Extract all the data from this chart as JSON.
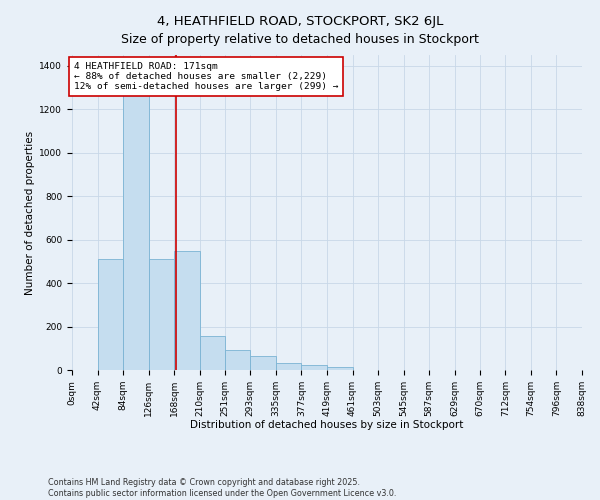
{
  "title": "4, HEATHFIELD ROAD, STOCKPORT, SK2 6JL",
  "subtitle": "Size of property relative to detached houses in Stockport",
  "xlabel": "Distribution of detached houses by size in Stockport",
  "ylabel": "Number of detached properties",
  "bin_labels": [
    "0sqm",
    "42sqm",
    "84sqm",
    "126sqm",
    "168sqm",
    "210sqm",
    "251sqm",
    "293sqm",
    "335sqm",
    "377sqm",
    "419sqm",
    "461sqm",
    "503sqm",
    "545sqm",
    "587sqm",
    "629sqm",
    "670sqm",
    "712sqm",
    "754sqm",
    "796sqm",
    "838sqm"
  ],
  "bin_edges": [
    0,
    42,
    84,
    126,
    168,
    210,
    251,
    293,
    335,
    377,
    419,
    461,
    503,
    545,
    587,
    629,
    670,
    712,
    754,
    796,
    838
  ],
  "bar_heights": [
    0,
    510,
    1310,
    510,
    550,
    155,
    90,
    65,
    30,
    22,
    12,
    2,
    0,
    0,
    0,
    0,
    0,
    0,
    0,
    0
  ],
  "bar_color": "#c5ddef",
  "bar_edgecolor": "#7ab3d3",
  "grid_color": "#c8d8e8",
  "bg_color": "#e8f0f8",
  "vline_x": 171,
  "vline_color": "#cc0000",
  "ylim": [
    0,
    1450
  ],
  "yticks": [
    0,
    200,
    400,
    600,
    800,
    1000,
    1200,
    1400
  ],
  "annotation_text": "4 HEATHFIELD ROAD: 171sqm\n← 88% of detached houses are smaller (2,229)\n12% of semi-detached houses are larger (299) →",
  "annotation_box_color": "#cc0000",
  "footer_text": "Contains HM Land Registry data © Crown copyright and database right 2025.\nContains public sector information licensed under the Open Government Licence v3.0.",
  "title_fontsize": 9.5,
  "axis_label_fontsize": 7.5,
  "tick_fontsize": 6.5,
  "annotation_fontsize": 6.8,
  "footer_fontsize": 5.8
}
